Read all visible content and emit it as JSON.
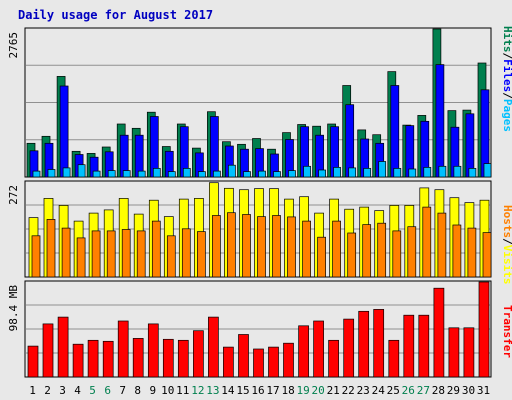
{
  "chart_data": {
    "type": "bar",
    "title": "Daily usage for August 2017",
    "x": [
      "1",
      "2",
      "3",
      "4",
      "5",
      "6",
      "7",
      "8",
      "9",
      "10",
      "11",
      "12",
      "13",
      "14",
      "15",
      "16",
      "17",
      "18",
      "19",
      "20",
      "21",
      "22",
      "23",
      "24",
      "25",
      "26",
      "27",
      "28",
      "29",
      "30",
      "31"
    ],
    "weekend_days": [
      "5",
      "6",
      "12",
      "13",
      "19",
      "20",
      "26",
      "27"
    ],
    "colors": {
      "hits": "#007f4e",
      "files": "#0000ff",
      "pages": "#00c0ff",
      "visits": "#ffff00",
      "hosts": "#ff8000",
      "transfer": "#ff0000",
      "weekday_label": "#000000",
      "weekend_label": "#007f4e",
      "title": "#0000c0"
    },
    "panels": [
      {
        "id": "requests",
        "ymax_label": "2765",
        "ymax": 2765,
        "side_label": [
          {
            "text": "Hits",
            "color": "#007f4e"
          },
          {
            "text": "/",
            "color": "#000000"
          },
          {
            "text": "Files",
            "color": "#0000ff"
          },
          {
            "text": "/",
            "color": "#000000"
          },
          {
            "text": "Pages",
            "color": "#00c0ff"
          }
        ],
        "series": [
          {
            "name": "Hits",
            "color": "#007f4e",
            "values": [
              630,
              760,
              1880,
              480,
              440,
              560,
              990,
              910,
              1210,
              570,
              990,
              540,
              1220,
              660,
              610,
              720,
              520,
              830,
              980,
              950,
              990,
              1710,
              880,
              790,
              1970,
              970,
              1150,
              2770,
              1240,
              1250,
              2130
            ]
          },
          {
            "name": "Files",
            "color": "#0000ff",
            "values": [
              490,
              630,
              1700,
              420,
              370,
              470,
              780,
              780,
              1130,
              480,
              940,
              450,
              1130,
              580,
              520,
              530,
              430,
              700,
              940,
              780,
              940,
              1350,
              710,
              630,
              1710,
              960,
              1040,
              2100,
              930,
              1180,
              1630
            ]
          },
          {
            "name": "Pages",
            "color": "#00c0ff",
            "values": [
              110,
              140,
              170,
              230,
              110,
              120,
              120,
              110,
              160,
              100,
              160,
              100,
              110,
              220,
              100,
              110,
              100,
              120,
              200,
              130,
              180,
              170,
              160,
              290,
              160,
              150,
              180,
              200,
              200,
              160,
              250
            ]
          }
        ]
      },
      {
        "id": "visitors",
        "ymax_label": "272",
        "ymax": 272,
        "side_label": [
          {
            "text": "Hosts",
            "color": "#ff8000"
          },
          {
            "text": "/",
            "color": "#000000"
          },
          {
            "text": "Visits",
            "color": "#ffff00"
          }
        ],
        "series": [
          {
            "name": "Visits",
            "color": "#ffff00",
            "values": [
              170,
              225,
              205,
              160,
              183,
              192,
              225,
              180,
              220,
              173,
              223,
              225,
              270,
              254,
              250,
              253,
              253,
              223,
              230,
              183,
              223,
              194,
              200,
              190,
              205,
              205,
              255,
              250,
              227,
              213,
              220
            ]
          },
          {
            "name": "Hosts",
            "color": "#ff8000",
            "values": [
              118,
              165,
              140,
              112,
              132,
              132,
              136,
              132,
              160,
              118,
              138,
              130,
              176,
              184,
              179,
              173,
              176,
              172,
              160,
              114,
              160,
              126,
              150,
              154,
              132,
              144,
              200,
              183,
              149,
              140,
              127
            ]
          }
        ]
      },
      {
        "id": "transfer",
        "ymax_label": "98.4 MB",
        "ymax": 98.4,
        "side_label": [
          {
            "text": "Transfer",
            "color": "#ff0000"
          }
        ],
        "series": [
          {
            "name": "Transfer",
            "color": "#ff0000",
            "values": [
              32,
              55,
              62,
              34,
              38,
              37,
              58,
              40,
              55,
              39,
              38,
              48,
              62,
              31,
              44,
              29,
              31,
              35,
              53,
              58,
              38,
              60,
              68,
              70,
              38,
              64,
              64,
              92,
              51,
              51,
              98.4
            ]
          }
        ]
      }
    ]
  }
}
